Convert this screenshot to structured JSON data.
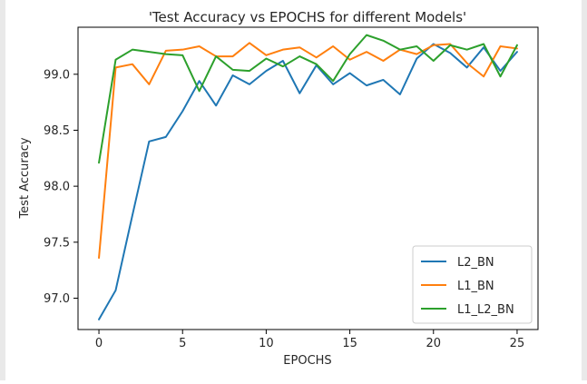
{
  "chart_data": {
    "type": "line",
    "title": "'Test Accuracy vs EPOCHS for different Models'",
    "xlabel": "EPOCHS",
    "ylabel": "Test Accuracy",
    "xlim": [
      -1.25,
      26.25
    ],
    "ylim": [
      96.72,
      99.42
    ],
    "xticks": [
      0,
      5,
      10,
      15,
      20,
      25
    ],
    "xtick_labels": [
      "0",
      "5",
      "10",
      "15",
      "20",
      "25"
    ],
    "yticks": [
      97.0,
      97.5,
      98.0,
      98.5,
      99.0
    ],
    "ytick_labels": [
      "97.0",
      "97.5",
      "98.0",
      "98.5",
      "99.0"
    ],
    "grid": false,
    "legend_position": "lower-right",
    "x": [
      0,
      1,
      2,
      3,
      4,
      5,
      6,
      7,
      8,
      9,
      10,
      11,
      12,
      13,
      14,
      15,
      16,
      17,
      18,
      19,
      20,
      21,
      22,
      23,
      24,
      25
    ],
    "series": [
      {
        "name": "L2_BN",
        "color": "#1f77b4",
        "values": [
          96.81,
          97.07,
          97.74,
          98.4,
          98.44,
          98.67,
          98.94,
          98.72,
          98.99,
          98.91,
          99.03,
          99.12,
          98.83,
          99.08,
          98.91,
          99.01,
          98.9,
          98.95,
          98.82,
          99.14,
          99.27,
          99.19,
          99.06,
          99.24,
          99.03,
          99.2
        ]
      },
      {
        "name": "L1_BN",
        "color": "#ff7f0e",
        "values": [
          97.36,
          99.06,
          99.09,
          98.91,
          99.21,
          99.22,
          99.25,
          99.16,
          99.16,
          99.28,
          99.17,
          99.22,
          99.24,
          99.15,
          99.25,
          99.13,
          99.2,
          99.12,
          99.22,
          99.18,
          99.26,
          99.27,
          99.1,
          98.98,
          99.25,
          99.23
        ]
      },
      {
        "name": "L1_L2_BN",
        "color": "#2ca02c",
        "values": [
          98.21,
          99.13,
          99.22,
          99.2,
          99.18,
          99.17,
          98.85,
          99.16,
          99.04,
          99.03,
          99.14,
          99.07,
          99.16,
          99.09,
          98.94,
          99.18,
          99.35,
          99.3,
          99.22,
          99.25,
          99.12,
          99.26,
          99.22,
          99.27,
          98.98,
          99.26
        ]
      }
    ]
  }
}
